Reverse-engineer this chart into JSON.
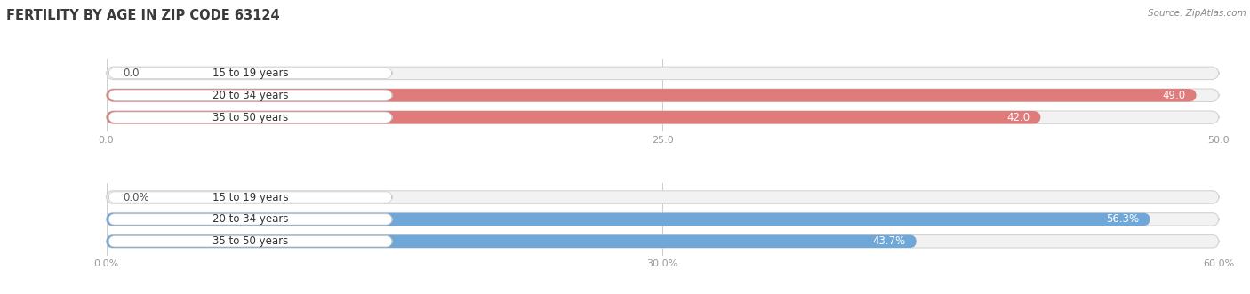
{
  "title": "FERTILITY BY AGE IN ZIP CODE 63124",
  "source": "Source: ZipAtlas.com",
  "top_chart": {
    "categories": [
      "15 to 19 years",
      "20 to 34 years",
      "35 to 50 years"
    ],
    "values": [
      0.0,
      49.0,
      42.0
    ],
    "bar_color": "#e07b7b",
    "bg_color": "#f2f2f2",
    "xlim": [
      0,
      50
    ],
    "xticks": [
      0.0,
      25.0,
      50.0
    ],
    "xtick_labels": [
      "0.0",
      "25.0",
      "50.0"
    ]
  },
  "bottom_chart": {
    "categories": [
      "15 to 19 years",
      "20 to 34 years",
      "35 to 50 years"
    ],
    "values": [
      0.0,
      56.3,
      43.7
    ],
    "bar_color": "#6fa8d8",
    "bg_color": "#f2f2f2",
    "xlim": [
      0,
      60
    ],
    "xticks": [
      0.0,
      30.0,
      60.0
    ],
    "xtick_labels": [
      "0.0%",
      "30.0%",
      "60.0%"
    ]
  },
  "label_values_top": [
    "0.0",
    "49.0",
    "42.0"
  ],
  "label_values_bottom": [
    "0.0%",
    "56.3%",
    "43.7%"
  ],
  "title_color": "#3a3a3a",
  "source_color": "#888888",
  "label_color_inside": "#ffffff",
  "label_color_outside": "#555555",
  "tick_color": "#999999",
  "bar_height": 0.58,
  "bar_label_fontsize": 8.5,
  "category_fontsize": 8.5,
  "tick_fontsize": 8,
  "title_fontsize": 10.5
}
